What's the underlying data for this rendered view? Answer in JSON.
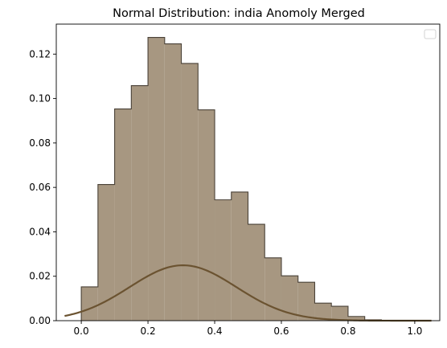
{
  "chart_data": {
    "type": "histogram",
    "title": "Normal Distribution: india Anomoly Merged",
    "xlabel": "",
    "ylabel": "",
    "xlim": [
      -0.075,
      1.075
    ],
    "ylim": [
      0,
      0.1335
    ],
    "x_ticks": [
      "0.0",
      "0.2",
      "0.4",
      "0.6",
      "0.8",
      "1.0"
    ],
    "y_ticks": [
      "0.00",
      "0.02",
      "0.04",
      "0.06",
      "0.08",
      "0.10",
      "0.12"
    ],
    "bins": [
      0.0,
      0.05,
      0.1,
      0.15,
      0.2,
      0.25,
      0.3,
      0.35,
      0.4,
      0.45,
      0.5,
      0.55,
      0.6,
      0.65,
      0.7,
      0.75,
      0.8,
      0.85,
      0.9,
      0.95,
      1.0
    ],
    "values": [
      0.0152,
      0.0613,
      0.0953,
      0.1058,
      0.1275,
      0.1246,
      0.1158,
      0.0949,
      0.0544,
      0.0579,
      0.0434,
      0.0283,
      0.0202,
      0.0173,
      0.0079,
      0.0065,
      0.0019,
      0.0004,
      0.0001,
      0.0001
    ],
    "normal_curve": {
      "mean": 0.305,
      "std": 0.16,
      "scale": 0.01,
      "x_range": [
        -0.05,
        1.05
      ]
    },
    "grid": false,
    "legend": {
      "placement": "top-right",
      "entries": []
    },
    "colors": {
      "hist_fill": "#a79781",
      "hist_edge": "#4a4238",
      "curve": "#6b5331"
    }
  }
}
